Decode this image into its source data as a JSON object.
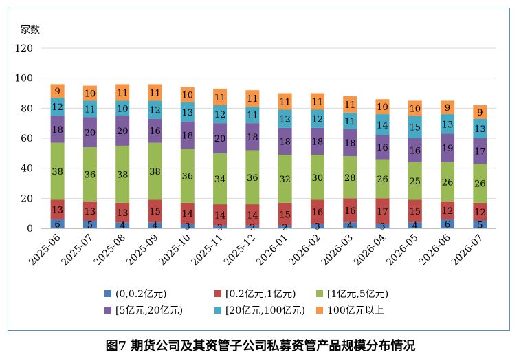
{
  "caption": "图7  期货公司及其资管子公司私募资管产品规模分布情况",
  "chart_data": {
    "type": "bar",
    "stacked": true,
    "ylabel": "家数",
    "ylim": [
      0,
      120
    ],
    "yticks": [
      0,
      20,
      40,
      60,
      80,
      100,
      120
    ],
    "grid": true,
    "legend_position": "bottom",
    "categories": [
      "2025-06",
      "2025-07",
      "2025-08",
      "2025-09",
      "2025-10",
      "2025-11",
      "2025-12",
      "2026-01",
      "2026-02",
      "2026-03",
      "2026-04",
      "2026-05",
      "2026-06",
      "2026-07"
    ],
    "series": [
      {
        "name": "(0,0.2亿元)",
        "color": "#4a7ebb",
        "values": [
          6,
          5,
          4,
          4,
          3,
          2,
          2,
          2,
          3,
          4,
          3,
          4,
          6,
          5
        ]
      },
      {
        "name": "[0.2亿元,1亿元)",
        "color": "#be4b48",
        "values": [
          13,
          13,
          13,
          15,
          14,
          14,
          14,
          15,
          16,
          16,
          17,
          15,
          12,
          12
        ]
      },
      {
        "name": "[1亿元,5亿元)",
        "color": "#98b954",
        "values": [
          38,
          36,
          38,
          38,
          36,
          34,
          36,
          32,
          30,
          28,
          26,
          25,
          26,
          26
        ]
      },
      {
        "name": "[5亿元,20亿元)",
        "color": "#7d5fa0",
        "values": [
          18,
          20,
          20,
          16,
          18,
          20,
          18,
          18,
          18,
          18,
          16,
          16,
          19,
          17
        ]
      },
      {
        "name": "[20亿元,100亿元)",
        "color": "#46aac5",
        "values": [
          12,
          11,
          10,
          12,
          13,
          12,
          11,
          12,
          12,
          11,
          14,
          15,
          13,
          13
        ]
      },
      {
        "name": "100亿元以上",
        "color": "#f79646",
        "values": [
          9,
          10,
          11,
          11,
          10,
          11,
          11,
          11,
          11,
          11,
          10,
          10,
          9,
          9
        ]
      }
    ]
  }
}
